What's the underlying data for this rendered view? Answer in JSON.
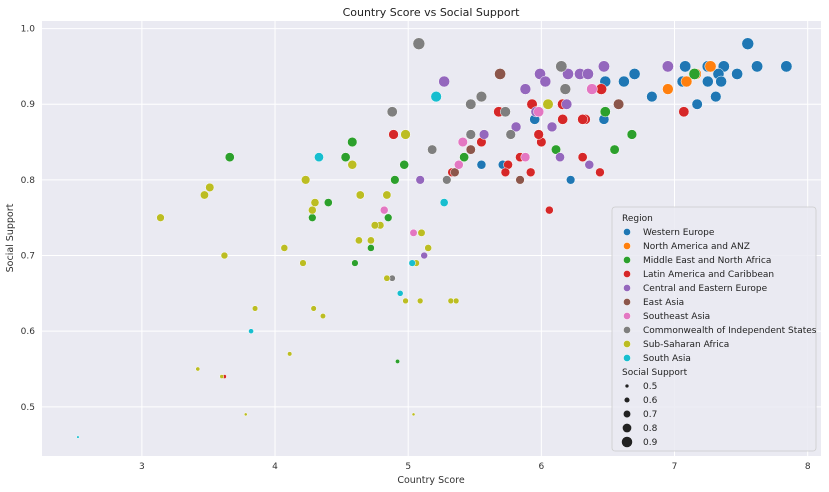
{
  "chart_data": {
    "type": "scatter",
    "title": "Country Score vs Social Support",
    "xlabel": "Country Score",
    "ylabel": "Social Support",
    "xlim": [
      2.25,
      8.1
    ],
    "ylim": [
      0.435,
      1.01
    ],
    "xticks": [
      "3",
      "4",
      "5",
      "6",
      "7",
      "8"
    ],
    "yticks": [
      "0.5",
      "0.6",
      "0.7",
      "0.8",
      "0.9",
      "1.0"
    ],
    "grid": true,
    "legend_position": "lower-right",
    "legend_title": "Region",
    "size_legend_title": "Social Support",
    "size_legend": [
      "0.5",
      "0.6",
      "0.7",
      "0.8",
      "0.9"
    ],
    "series": [
      {
        "name": "Western Europe",
        "color": "#1f77b4",
        "points": [
          [
            7.55,
            0.98
          ],
          [
            7.84,
            0.95
          ],
          [
            7.62,
            0.95
          ],
          [
            7.37,
            0.95
          ],
          [
            7.25,
            0.95
          ],
          [
            7.08,
            0.95
          ],
          [
            7.47,
            0.94
          ],
          [
            7.33,
            0.94
          ],
          [
            6.7,
            0.94
          ],
          [
            7.06,
            0.93
          ],
          [
            7.25,
            0.93
          ],
          [
            7.35,
            0.93
          ],
          [
            6.62,
            0.93
          ],
          [
            6.48,
            0.93
          ],
          [
            7.31,
            0.91
          ],
          [
            6.83,
            0.91
          ],
          [
            7.17,
            0.9
          ],
          [
            6.47,
            0.88
          ],
          [
            5.95,
            0.88
          ],
          [
            5.71,
            0.82
          ],
          [
            5.55,
            0.82
          ],
          [
            6.22,
            0.8
          ]
        ]
      },
      {
        "name": "North America and ANZ",
        "color": "#ff7f0e",
        "points": [
          [
            6.95,
            0.92
          ],
          [
            7.27,
            0.95
          ],
          [
            7.09,
            0.93
          ],
          [
            7.16,
            0.94
          ]
        ]
      },
      {
        "name": "Middle East and North Africa",
        "color": "#2ca02c",
        "points": [
          [
            7.15,
            0.94
          ],
          [
            6.48,
            0.89
          ],
          [
            6.68,
            0.86
          ],
          [
            6.55,
            0.84
          ],
          [
            6.11,
            0.84
          ],
          [
            5.42,
            0.83
          ],
          [
            4.58,
            0.85
          ],
          [
            4.53,
            0.83
          ],
          [
            4.97,
            0.82
          ],
          [
            4.9,
            0.8
          ],
          [
            3.66,
            0.83
          ],
          [
            4.4,
            0.77
          ],
          [
            4.28,
            0.75
          ],
          [
            4.85,
            0.75
          ],
          [
            4.72,
            0.71
          ],
          [
            4.6,
            0.69
          ],
          [
            4.92,
            0.56
          ]
        ]
      },
      {
        "name": "Latin America and Caribbean",
        "color": "#d62728",
        "points": [
          [
            7.07,
            0.89
          ],
          [
            6.45,
            0.92
          ],
          [
            6.33,
            0.88
          ],
          [
            6.31,
            0.88
          ],
          [
            6.16,
            0.88
          ],
          [
            6.16,
            0.9
          ],
          [
            5.93,
            0.9
          ],
          [
            5.68,
            0.89
          ],
          [
            5.55,
            0.85
          ],
          [
            6.0,
            0.85
          ],
          [
            5.98,
            0.86
          ],
          [
            4.89,
            0.86
          ],
          [
            6.31,
            0.83
          ],
          [
            6.44,
            0.81
          ],
          [
            5.84,
            0.83
          ],
          [
            5.75,
            0.82
          ],
          [
            5.73,
            0.81
          ],
          [
            5.92,
            0.81
          ],
          [
            5.33,
            0.81
          ],
          [
            6.06,
            0.76
          ],
          [
            3.62,
            0.54
          ]
        ]
      },
      {
        "name": "Central and Eastern Europe",
        "color": "#9467bd",
        "points": [
          [
            6.47,
            0.95
          ],
          [
            6.95,
            0.95
          ],
          [
            6.2,
            0.94
          ],
          [
            6.29,
            0.94
          ],
          [
            6.35,
            0.94
          ],
          [
            5.99,
            0.94
          ],
          [
            6.03,
            0.93
          ],
          [
            5.27,
            0.93
          ],
          [
            5.88,
            0.92
          ],
          [
            6.19,
            0.9
          ],
          [
            5.96,
            0.89
          ],
          [
            5.57,
            0.86
          ],
          [
            6.08,
            0.87
          ],
          [
            5.81,
            0.87
          ],
          [
            6.14,
            0.83
          ],
          [
            6.36,
            0.82
          ],
          [
            5.09,
            0.8
          ],
          [
            5.12,
            0.7
          ]
        ]
      },
      {
        "name": "East Asia",
        "color": "#8c564b",
        "points": [
          [
            5.69,
            0.94
          ],
          [
            6.58,
            0.9
          ],
          [
            5.47,
            0.84
          ],
          [
            5.35,
            0.81
          ],
          [
            5.84,
            0.8
          ]
        ]
      },
      {
        "name": "Southeast Asia",
        "color": "#e377c2",
        "points": [
          [
            6.38,
            0.92
          ],
          [
            5.98,
            0.89
          ],
          [
            5.41,
            0.85
          ],
          [
            5.88,
            0.83
          ],
          [
            5.38,
            0.82
          ],
          [
            4.64,
            0.78
          ],
          [
            4.82,
            0.76
          ],
          [
            5.04,
            0.73
          ]
        ]
      },
      {
        "name": "Commonwealth of Independent States",
        "color": "#7f7f7f",
        "points": [
          [
            5.08,
            0.98
          ],
          [
            6.15,
            0.95
          ],
          [
            5.55,
            0.91
          ],
          [
            5.47,
            0.9
          ],
          [
            4.88,
            0.89
          ],
          [
            6.18,
            0.92
          ],
          [
            5.73,
            0.89
          ],
          [
            5.47,
            0.86
          ],
          [
            5.77,
            0.86
          ],
          [
            5.18,
            0.84
          ],
          [
            5.29,
            0.8
          ],
          [
            4.88,
            0.67
          ]
        ]
      },
      {
        "name": "Sub-Saharan Africa",
        "color": "#bcbd22",
        "points": [
          [
            6.05,
            0.9
          ],
          [
            4.98,
            0.86
          ],
          [
            4.58,
            0.82
          ],
          [
            4.23,
            0.8
          ],
          [
            3.51,
            0.79
          ],
          [
            3.47,
            0.78
          ],
          [
            4.64,
            0.78
          ],
          [
            4.84,
            0.78
          ],
          [
            3.14,
            0.75
          ],
          [
            4.3,
            0.77
          ],
          [
            4.28,
            0.76
          ],
          [
            4.79,
            0.74
          ],
          [
            4.75,
            0.74
          ],
          [
            5.1,
            0.73
          ],
          [
            4.63,
            0.72
          ],
          [
            4.72,
            0.72
          ],
          [
            4.07,
            0.71
          ],
          [
            5.15,
            0.71
          ],
          [
            3.62,
            0.7
          ],
          [
            4.21,
            0.69
          ],
          [
            5.06,
            0.69
          ],
          [
            4.84,
            0.67
          ],
          [
            4.98,
            0.64
          ],
          [
            5.09,
            0.64
          ],
          [
            5.32,
            0.64
          ],
          [
            5.36,
            0.64
          ],
          [
            3.85,
            0.63
          ],
          [
            4.29,
            0.63
          ],
          [
            4.36,
            0.62
          ],
          [
            4.11,
            0.57
          ],
          [
            3.42,
            0.55
          ],
          [
            3.6,
            0.54
          ],
          [
            3.78,
            0.49
          ],
          [
            5.04,
            0.49
          ]
        ]
      },
      {
        "name": "South Asia",
        "color": "#17becf",
        "points": [
          [
            5.21,
            0.91
          ],
          [
            4.33,
            0.83
          ],
          [
            5.27,
            0.77
          ],
          [
            5.03,
            0.69
          ],
          [
            4.94,
            0.65
          ],
          [
            3.82,
            0.6
          ],
          [
            2.52,
            0.46
          ]
        ]
      }
    ]
  }
}
